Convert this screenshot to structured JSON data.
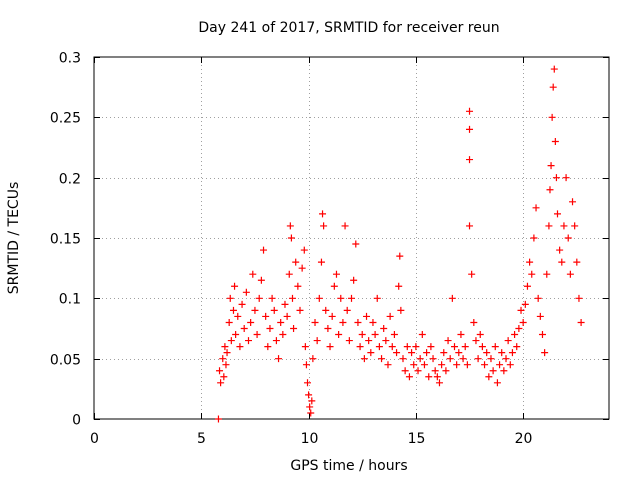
{
  "chart_data": {
    "type": "scatter",
    "title": "Day 241 of 2017, SRMTID for receiver reun",
    "xlabel": "GPS time / hours",
    "ylabel": "SRMTID / TECUs",
    "xlim": [
      0,
      24
    ],
    "ylim": [
      0,
      0.3
    ],
    "x_ticks": [
      0,
      5,
      10,
      15,
      20
    ],
    "x_tick_labels": [
      "0",
      "5",
      "10",
      "15",
      "20"
    ],
    "y_ticks": [
      0,
      0.05,
      0.1,
      0.15,
      0.2,
      0.25,
      0.3
    ],
    "y_tick_labels": [
      "0",
      "0.05",
      "0.1",
      "0.15",
      "0.2",
      "0.25",
      "0.3"
    ],
    "grid": true,
    "marker": "+",
    "series_color": "#ff0000",
    "series": [
      {
        "name": "SRMTID",
        "points": [
          [
            5.8,
            0.0
          ],
          [
            5.85,
            0.04
          ],
          [
            5.9,
            0.03
          ],
          [
            6.0,
            0.05
          ],
          [
            6.05,
            0.035
          ],
          [
            6.1,
            0.06
          ],
          [
            6.15,
            0.045
          ],
          [
            6.2,
            0.055
          ],
          [
            6.3,
            0.08
          ],
          [
            6.35,
            0.1
          ],
          [
            6.4,
            0.065
          ],
          [
            6.5,
            0.09
          ],
          [
            6.55,
            0.11
          ],
          [
            6.6,
            0.07
          ],
          [
            6.7,
            0.085
          ],
          [
            6.8,
            0.06
          ],
          [
            6.9,
            0.095
          ],
          [
            7.0,
            0.075
          ],
          [
            7.1,
            0.105
          ],
          [
            7.2,
            0.065
          ],
          [
            7.3,
            0.08
          ],
          [
            7.4,
            0.12
          ],
          [
            7.5,
            0.09
          ],
          [
            7.6,
            0.07
          ],
          [
            7.7,
            0.1
          ],
          [
            7.8,
            0.115
          ],
          [
            7.9,
            0.14
          ],
          [
            8.0,
            0.085
          ],
          [
            8.1,
            0.06
          ],
          [
            8.2,
            0.075
          ],
          [
            8.3,
            0.1
          ],
          [
            8.4,
            0.09
          ],
          [
            8.5,
            0.065
          ],
          [
            8.6,
            0.05
          ],
          [
            8.7,
            0.08
          ],
          [
            8.8,
            0.07
          ],
          [
            8.9,
            0.095
          ],
          [
            9.0,
            0.085
          ],
          [
            9.1,
            0.12
          ],
          [
            9.15,
            0.16
          ],
          [
            9.2,
            0.15
          ],
          [
            9.25,
            0.1
          ],
          [
            9.3,
            0.075
          ],
          [
            9.4,
            0.13
          ],
          [
            9.5,
            0.11
          ],
          [
            9.6,
            0.09
          ],
          [
            9.7,
            0.125
          ],
          [
            9.8,
            0.14
          ],
          [
            9.85,
            0.06
          ],
          [
            9.9,
            0.045
          ],
          [
            9.95,
            0.03
          ],
          [
            10.0,
            0.02
          ],
          [
            10.05,
            0.01
          ],
          [
            10.1,
            0.005
          ],
          [
            10.15,
            0.015
          ],
          [
            10.2,
            0.05
          ],
          [
            10.3,
            0.08
          ],
          [
            10.4,
            0.065
          ],
          [
            10.5,
            0.1
          ],
          [
            10.6,
            0.13
          ],
          [
            10.65,
            0.17
          ],
          [
            10.7,
            0.16
          ],
          [
            10.8,
            0.09
          ],
          [
            10.9,
            0.075
          ],
          [
            11.0,
            0.06
          ],
          [
            11.1,
            0.085
          ],
          [
            11.2,
            0.11
          ],
          [
            11.3,
            0.12
          ],
          [
            11.4,
            0.07
          ],
          [
            11.5,
            0.1
          ],
          [
            11.6,
            0.08
          ],
          [
            11.7,
            0.16
          ],
          [
            11.8,
            0.09
          ],
          [
            11.9,
            0.065
          ],
          [
            12.0,
            0.1
          ],
          [
            12.1,
            0.115
          ],
          [
            12.2,
            0.145
          ],
          [
            12.3,
            0.08
          ],
          [
            12.4,
            0.06
          ],
          [
            12.5,
            0.07
          ],
          [
            12.6,
            0.05
          ],
          [
            12.7,
            0.085
          ],
          [
            12.8,
            0.065
          ],
          [
            12.9,
            0.055
          ],
          [
            13.0,
            0.08
          ],
          [
            13.1,
            0.07
          ],
          [
            13.2,
            0.1
          ],
          [
            13.3,
            0.06
          ],
          [
            13.4,
            0.05
          ],
          [
            13.5,
            0.075
          ],
          [
            13.6,
            0.065
          ],
          [
            13.7,
            0.045
          ],
          [
            13.8,
            0.085
          ],
          [
            13.9,
            0.06
          ],
          [
            14.0,
            0.07
          ],
          [
            14.1,
            0.055
          ],
          [
            14.2,
            0.11
          ],
          [
            14.25,
            0.135
          ],
          [
            14.3,
            0.09
          ],
          [
            14.4,
            0.05
          ],
          [
            14.5,
            0.04
          ],
          [
            14.6,
            0.06
          ],
          [
            14.7,
            0.035
          ],
          [
            14.8,
            0.055
          ],
          [
            14.9,
            0.045
          ],
          [
            15.0,
            0.06
          ],
          [
            15.1,
            0.04
          ],
          [
            15.2,
            0.05
          ],
          [
            15.3,
            0.07
          ],
          [
            15.4,
            0.045
          ],
          [
            15.5,
            0.055
          ],
          [
            15.6,
            0.035
          ],
          [
            15.7,
            0.06
          ],
          [
            15.8,
            0.05
          ],
          [
            15.9,
            0.04
          ],
          [
            16.0,
            0.035
          ],
          [
            16.1,
            0.03
          ],
          [
            16.2,
            0.045
          ],
          [
            16.3,
            0.055
          ],
          [
            16.4,
            0.04
          ],
          [
            16.5,
            0.065
          ],
          [
            16.6,
            0.05
          ],
          [
            16.7,
            0.1
          ],
          [
            16.8,
            0.06
          ],
          [
            16.9,
            0.045
          ],
          [
            17.0,
            0.055
          ],
          [
            17.1,
            0.07
          ],
          [
            17.2,
            0.05
          ],
          [
            17.3,
            0.06
          ],
          [
            17.4,
            0.045
          ],
          [
            17.5,
            0.255
          ],
          [
            17.5,
            0.24
          ],
          [
            17.5,
            0.215
          ],
          [
            17.5,
            0.16
          ],
          [
            17.6,
            0.12
          ],
          [
            17.7,
            0.08
          ],
          [
            17.8,
            0.065
          ],
          [
            17.9,
            0.05
          ],
          [
            18.0,
            0.07
          ],
          [
            18.1,
            0.06
          ],
          [
            18.2,
            0.045
          ],
          [
            18.3,
            0.055
          ],
          [
            18.4,
            0.035
          ],
          [
            18.5,
            0.05
          ],
          [
            18.6,
            0.04
          ],
          [
            18.7,
            0.06
          ],
          [
            18.8,
            0.03
          ],
          [
            18.9,
            0.045
          ],
          [
            19.0,
            0.055
          ],
          [
            19.1,
            0.04
          ],
          [
            19.2,
            0.05
          ],
          [
            19.3,
            0.065
          ],
          [
            19.4,
            0.045
          ],
          [
            19.5,
            0.055
          ],
          [
            19.6,
            0.07
          ],
          [
            19.7,
            0.06
          ],
          [
            19.8,
            0.075
          ],
          [
            19.9,
            0.09
          ],
          [
            20.0,
            0.08
          ],
          [
            20.1,
            0.095
          ],
          [
            20.2,
            0.11
          ],
          [
            20.3,
            0.13
          ],
          [
            20.4,
            0.12
          ],
          [
            20.5,
            0.15
          ],
          [
            20.6,
            0.175
          ],
          [
            20.7,
            0.1
          ],
          [
            20.8,
            0.085
          ],
          [
            20.9,
            0.07
          ],
          [
            21.0,
            0.055
          ],
          [
            21.1,
            0.12
          ],
          [
            21.2,
            0.16
          ],
          [
            21.25,
            0.19
          ],
          [
            21.3,
            0.21
          ],
          [
            21.35,
            0.25
          ],
          [
            21.4,
            0.275
          ],
          [
            21.45,
            0.29
          ],
          [
            21.5,
            0.23
          ],
          [
            21.55,
            0.2
          ],
          [
            21.6,
            0.17
          ],
          [
            21.7,
            0.14
          ],
          [
            21.8,
            0.13
          ],
          [
            21.9,
            0.16
          ],
          [
            22.0,
            0.2
          ],
          [
            22.1,
            0.15
          ],
          [
            22.2,
            0.12
          ],
          [
            22.3,
            0.18
          ],
          [
            22.4,
            0.16
          ],
          [
            22.5,
            0.13
          ],
          [
            22.6,
            0.1
          ],
          [
            22.7,
            0.08
          ]
        ]
      }
    ]
  }
}
